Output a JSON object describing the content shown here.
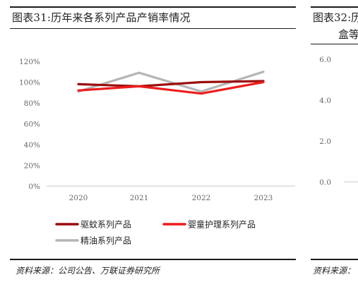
{
  "left_panel": {
    "title": "图表31:历年来各系列产品产销率情况",
    "source": "资料来源：公司公告、万联证券研究所"
  },
  "right_panel": {
    "title_line1": "图表32:历",
    "title_line2": "盒等",
    "source": "资料来源：",
    "y_ticks": [
      "6.0",
      "4.0",
      "2.0",
      "0.0"
    ]
  },
  "chart_data": {
    "type": "line",
    "x": [
      "2020",
      "2021",
      "2022",
      "2023"
    ],
    "y_ticks": [
      "0%",
      "20%",
      "40%",
      "60%",
      "80%",
      "100%",
      "120%"
    ],
    "ylim": [
      0,
      120
    ],
    "legend_placement": "bottom",
    "series": [
      {
        "name": "驱蚊系列产品",
        "color": "#9b0d0d",
        "values": [
          98,
          96,
          100,
          101
        ]
      },
      {
        "name": "婴童护理系列产品",
        "color": "#ee1c1c",
        "values": [
          92,
          96,
          89,
          100
        ]
      },
      {
        "name": "精油系列产品",
        "color": "#b5b5b5",
        "values": [
          91,
          109,
          91,
          110
        ]
      }
    ]
  }
}
